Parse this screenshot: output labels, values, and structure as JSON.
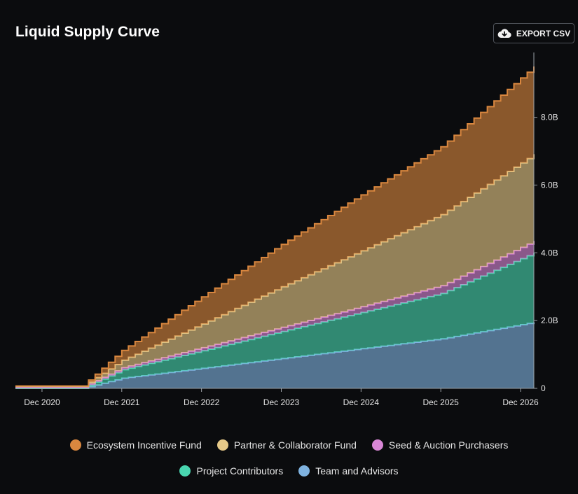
{
  "header": {
    "title": "Liquid Supply Curve",
    "export_label": "EXPORT CSV"
  },
  "chart_data": {
    "type": "area",
    "stacked": true,
    "x_ticks": [
      "Dec 2020",
      "Dec 2021",
      "Dec 2022",
      "Dec 2023",
      "Dec 2024",
      "Dec 2025",
      "Dec 2026"
    ],
    "y_ticks": [
      "0",
      "2.0B",
      "4.0B",
      "6.0B",
      "8.0B"
    ],
    "ylim": [
      0,
      9500000000
    ],
    "xlim": [
      "2020-08",
      "2027-02"
    ],
    "legend_position": "bottom",
    "x": [
      "2020-08",
      "2021-06",
      "2021-12",
      "2022-12",
      "2023-12",
      "2024-12",
      "2025-12",
      "2027-02"
    ],
    "series": [
      {
        "name": "Team and Advisors",
        "color": "#7fb3e0",
        "values": [
          0,
          0,
          300000000,
          590000000,
          880000000,
          1170000000,
          1460000000,
          1950000000
        ]
      },
      {
        "name": "Project Contributors",
        "color": "#49d6b0",
        "values": [
          0,
          0,
          250000000,
          520000000,
          800000000,
          1070000000,
          1340000000,
          2050000000
        ]
      },
      {
        "name": "Seed & Auction Purchasers",
        "color": "#d987d6",
        "values": [
          40000000,
          40000000,
          60000000,
          90000000,
          120000000,
          170000000,
          230000000,
          350000000
        ]
      },
      {
        "name": "Partner & Collaborator Fund",
        "color": "#e6c988",
        "values": [
          20000000,
          20000000,
          220000000,
          700000000,
          1200000000,
          1650000000,
          2100000000,
          2560000000
        ]
      },
      {
        "name": "Ecosystem Incentive Fund",
        "color": "#d9873f",
        "values": [
          10000000,
          10000000,
          290000000,
          800000000,
          1250000000,
          1650000000,
          2000000000,
          2590000000
        ]
      }
    ]
  },
  "legend": {
    "row1": [
      {
        "label": "Ecosystem Incentive Fund",
        "color": "#d9873f"
      },
      {
        "label": "Partner & Collaborator Fund",
        "color": "#e6c988"
      },
      {
        "label": "Seed & Auction Purchasers",
        "color": "#d987d6"
      }
    ],
    "row2": [
      {
        "label": "Project Contributors",
        "color": "#49d6b0"
      },
      {
        "label": "Team and Advisors",
        "color": "#7fb3e0"
      }
    ]
  }
}
